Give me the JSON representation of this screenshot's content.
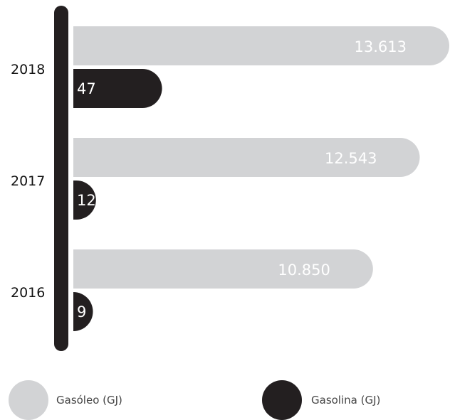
{
  "chart_data": {
    "type": "bar",
    "orientation": "horizontal",
    "categories": [
      "2018",
      "2017",
      "2016"
    ],
    "series": [
      {
        "name": "Gasóleo (GJ)",
        "values": [
          13613,
          12543,
          10850
        ],
        "labels": [
          "13.613",
          "12.543",
          "10.850"
        ],
        "color": "#d2d3d5"
      },
      {
        "name": "Gasolina (GJ)",
        "values": [
          47,
          12,
          9
        ],
        "labels": [
          "47",
          "12",
          "9"
        ],
        "color": "#231f20"
      }
    ],
    "legend_position": "bottom",
    "grid": false
  }
}
